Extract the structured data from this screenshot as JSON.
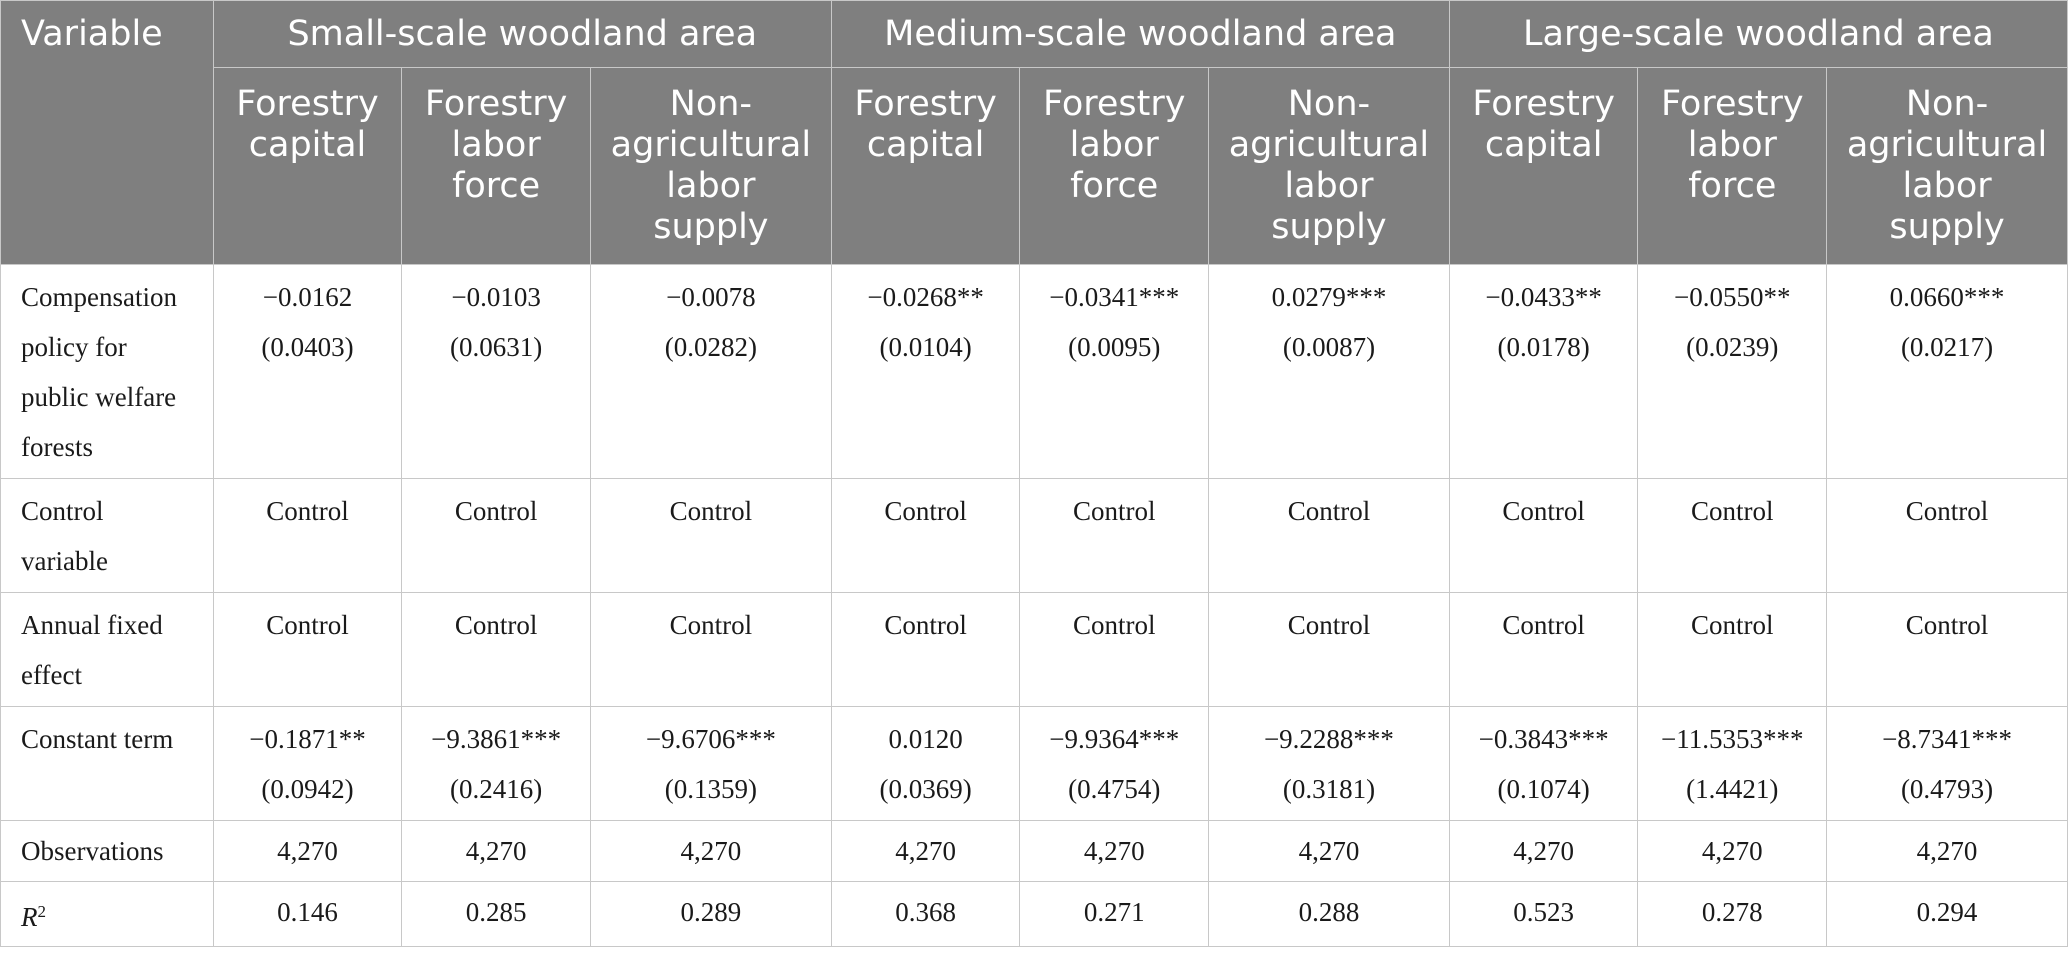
{
  "header": {
    "variable": "Variable",
    "groups": [
      "Small-scale woodland area",
      "Medium-scale woodland area",
      "Large-scale woodland area"
    ],
    "subcolumns": [
      [
        "Forestry",
        "capital"
      ],
      [
        "Forestry",
        "labor",
        "force"
      ],
      [
        "Non-",
        "agricultural",
        "labor",
        "supply"
      ],
      [
        "Forestry",
        "capital"
      ],
      [
        "Forestry",
        "labor",
        "force"
      ],
      [
        "Non-",
        "agricultural",
        "labor",
        "supply"
      ],
      [
        "Forestry",
        "capital"
      ],
      [
        "Forestry",
        "labor",
        "force"
      ],
      [
        "Non-",
        "agricultural",
        "labor",
        "supply"
      ]
    ]
  },
  "rows": {
    "compensation": {
      "label": [
        "Compensation",
        "policy for",
        "public welfare",
        "forests"
      ],
      "values": [
        "−0.0162",
        "−0.0103",
        "−0.0078",
        "−0.0268**",
        "−0.0341***",
        "0.0279***",
        "−0.0433**",
        "−0.0550**",
        "0.0660***"
      ],
      "se": [
        "(0.0403)",
        "(0.0631)",
        "(0.0282)",
        "(0.0104)",
        "(0.0095)",
        "(0.0087)",
        "(0.0178)",
        "(0.0239)",
        "(0.0217)"
      ]
    },
    "control": {
      "label": [
        "Control",
        "variable"
      ],
      "values": [
        "Control",
        "Control",
        "Control",
        "Control",
        "Control",
        "Control",
        "Control",
        "Control",
        "Control"
      ]
    },
    "fixed_effect": {
      "label": [
        "Annual fixed",
        "effect"
      ],
      "values": [
        "Control",
        "Control",
        "Control",
        "Control",
        "Control",
        "Control",
        "Control",
        "Control",
        "Control"
      ]
    },
    "constant": {
      "label": [
        "Constant term"
      ],
      "values": [
        "−0.1871**",
        "−9.3861***",
        "−9.6706***",
        "0.0120",
        "−9.9364***",
        "−9.2288***",
        "−0.3843***",
        "−11.5353***",
        "−8.7341***"
      ],
      "se": [
        "(0.0942)",
        "(0.2416)",
        "(0.1359)",
        "(0.0369)",
        "(0.4754)",
        "(0.3181)",
        "(0.1074)",
        "(1.4421)",
        "(0.4793)"
      ]
    },
    "observations": {
      "label": "Observations",
      "values": [
        "4,270",
        "4,270",
        "4,270",
        "4,270",
        "4,270",
        "4,270",
        "4,270",
        "4,270",
        "4,270"
      ]
    },
    "r2": {
      "label_main": "R",
      "label_sup": "2",
      "values": [
        "0.146",
        "0.285",
        "0.289",
        "0.368",
        "0.271",
        "0.288",
        "0.523",
        "0.278",
        "0.294"
      ]
    }
  }
}
